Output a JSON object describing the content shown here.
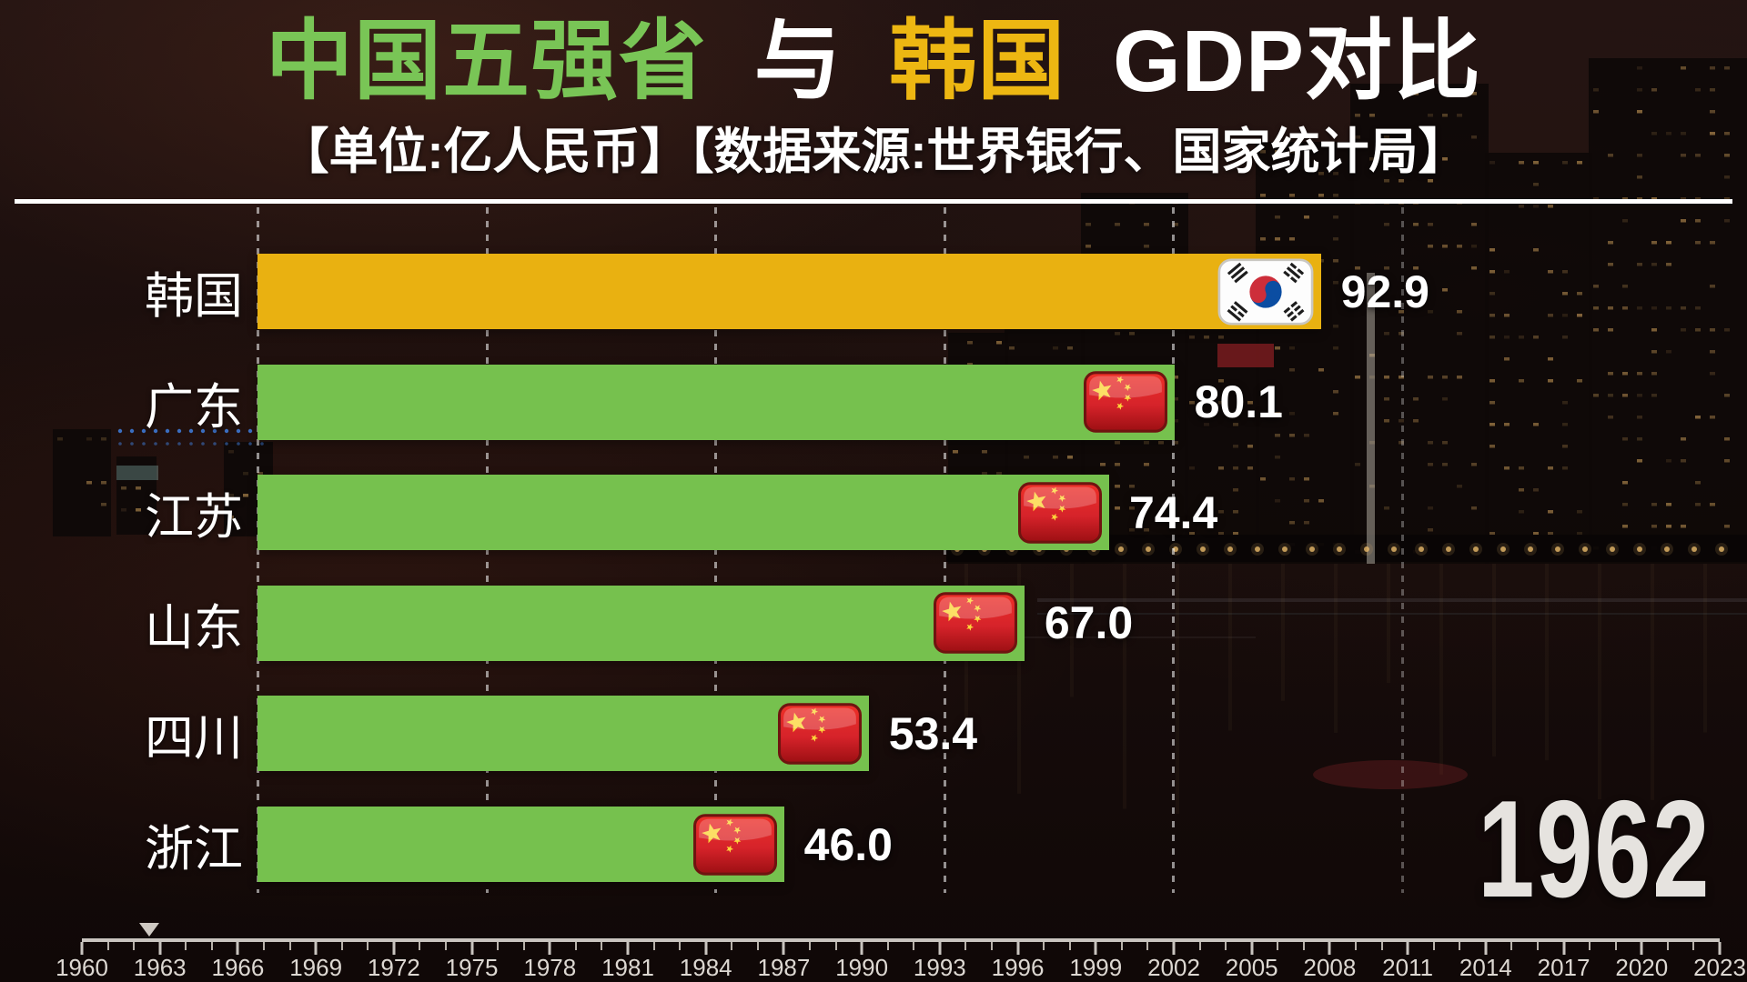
{
  "header": {
    "title_green": "中国五强省",
    "title_conn": "与",
    "title_yellow": "韩国",
    "title_rest": "GDP对比",
    "subtitle": "【单位:亿人民币】【数据来源:世界银行、国家统计局】"
  },
  "chart_data": {
    "type": "bar",
    "orientation": "horizontal",
    "title": "中国五强省 与 韩国 GDP对比",
    "unit_label": "亿人民币",
    "source_label": "世界银行、国家统计局",
    "current_year": "1962",
    "categories": [
      "韩国",
      "广东",
      "江苏",
      "山东",
      "四川",
      "浙江"
    ],
    "values": [
      92.9,
      80.1,
      74.4,
      67.0,
      53.4,
      46.0
    ],
    "value_labels": [
      "92.9",
      "80.1",
      "74.4",
      "67.0",
      "53.4",
      "46.0"
    ],
    "flags": [
      "kr",
      "cn",
      "cn",
      "cn",
      "cn",
      "cn"
    ],
    "bar_colors": [
      "#e9b111",
      "#76c14e",
      "#76c14e",
      "#76c14e",
      "#76c14e",
      "#76c14e"
    ],
    "xlim": [
      0,
      100
    ],
    "gridline_values": [
      0,
      20,
      40,
      60,
      80,
      100
    ],
    "grid": "vertical-dashed",
    "legend": "none"
  },
  "timeline": {
    "start_year": 1960,
    "end_year": 2023,
    "tick_step_years": 1,
    "label_step_years": 3,
    "labels": [
      "1960",
      "1963",
      "1966",
      "1969",
      "1972",
      "1975",
      "1978",
      "1981",
      "1984",
      "1987",
      "1990",
      "1993",
      "1996",
      "1999",
      "2002",
      "2005",
      "2008",
      "2011",
      "2014",
      "2017",
      "2020",
      "2023"
    ],
    "marker_year": 1962
  },
  "colors": {
    "title_green": "#79c556",
    "title_yellow": "#edb712",
    "bar_green": "#76c14e",
    "bar_yellow": "#e9b111",
    "value_text": "#ffffff",
    "label_text": "#ffffff",
    "year_text": "#e6e3df",
    "gridline": "rgba(255,255,255,0.55)",
    "korea_flag_red": "#cd2e3a",
    "korea_flag_blue": "#0b4da2",
    "china_flag_red": "#d6232a",
    "china_flag_star": "#fcd53a"
  }
}
